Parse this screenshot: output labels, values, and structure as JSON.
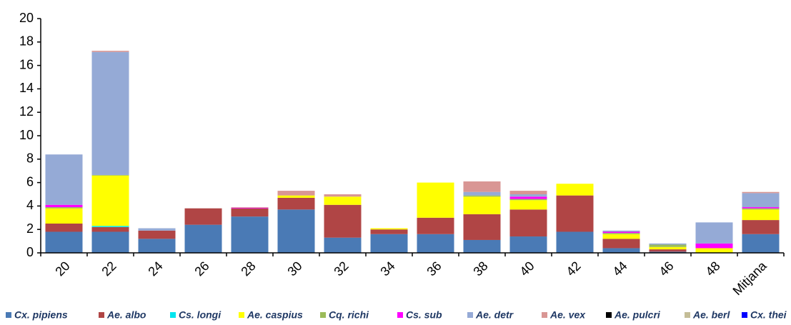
{
  "chart_data": {
    "type": "stacked_bar",
    "categories": [
      "20",
      "22",
      "24",
      "26",
      "28",
      "30",
      "32",
      "34",
      "36",
      "38",
      "40",
      "42",
      "44",
      "46",
      "48",
      "Mitjana"
    ],
    "series": [
      {
        "name": "Cx. pipiens",
        "color": "#4a7ab5",
        "values": [
          1.8,
          1.8,
          1.2,
          2.4,
          3.1,
          3.7,
          1.3,
          1.6,
          1.6,
          1.1,
          1.4,
          1.8,
          0.4,
          0.1,
          0,
          1.6
        ]
      },
      {
        "name": "Ae. albo",
        "color": "#b04545",
        "values": [
          0.7,
          0.4,
          0.7,
          1.4,
          0.7,
          1.0,
          2.8,
          0.4,
          1.4,
          2.2,
          2.3,
          3.1,
          0.8,
          0.2,
          0,
          1.2
        ]
      },
      {
        "name": "Cs. longi",
        "color": "#00e5ee",
        "values": [
          0,
          0.1,
          0,
          0,
          0,
          0,
          0,
          0,
          0,
          0,
          0,
          0,
          0,
          0,
          0,
          0
        ]
      },
      {
        "name": "Ae. caspius",
        "color": "#ffff00",
        "values": [
          1.3,
          4.3,
          0,
          0,
          0,
          0.2,
          0.7,
          0.1,
          3.0,
          1.5,
          0.8,
          1.0,
          0.4,
          0.2,
          0.4,
          0.9
        ]
      },
      {
        "name": "Cq. richi",
        "color": "#9bbb59",
        "values": [
          0.1,
          0.05,
          0,
          0,
          0,
          0,
          0,
          0,
          0,
          0.1,
          0.1,
          0,
          0.1,
          0.2,
          0,
          0.1
        ]
      },
      {
        "name": "Cs. sub",
        "color": "#ff00ff",
        "values": [
          0.2,
          0,
          0,
          0,
          0.05,
          0,
          0,
          0,
          0,
          0,
          0.2,
          0,
          0.1,
          0,
          0.4,
          0.1
        ]
      },
      {
        "name": "Ae. detr",
        "color": "#95aad6",
        "values": [
          4.3,
          10.5,
          0.2,
          0,
          0,
          0,
          0,
          0,
          0,
          0.3,
          0.2,
          0,
          0.1,
          0.1,
          1.8,
          1.2
        ]
      },
      {
        "name": "Ae. vex",
        "color": "#d99694",
        "values": [
          0,
          0.1,
          0,
          0,
          0.05,
          0.4,
          0.2,
          0,
          0,
          0.9,
          0.3,
          0,
          0,
          0,
          0,
          0.1
        ]
      },
      {
        "name": "Ae. pulcri",
        "color": "#000000",
        "values": [
          0,
          0,
          0,
          0,
          0,
          0,
          0,
          0,
          0,
          0,
          0,
          0,
          0,
          0,
          0,
          0
        ]
      },
      {
        "name": "Ae. berl",
        "color": "#c4bd97",
        "values": [
          0,
          0,
          0,
          0,
          0,
          0,
          0,
          0,
          0,
          0,
          0,
          0,
          0,
          0,
          0,
          0
        ]
      },
      {
        "name": "Cx. thei",
        "color": "#0000ff",
        "values": [
          0,
          0,
          0,
          0,
          0,
          0,
          0,
          0,
          0,
          0,
          0,
          0,
          0,
          0,
          0,
          0
        ]
      }
    ],
    "ylim": [
      0,
      20
    ],
    "yticks": [
      0,
      2,
      4,
      6,
      8,
      10,
      12,
      14,
      16,
      18,
      20
    ],
    "grid": false,
    "legend": "bottom"
  }
}
